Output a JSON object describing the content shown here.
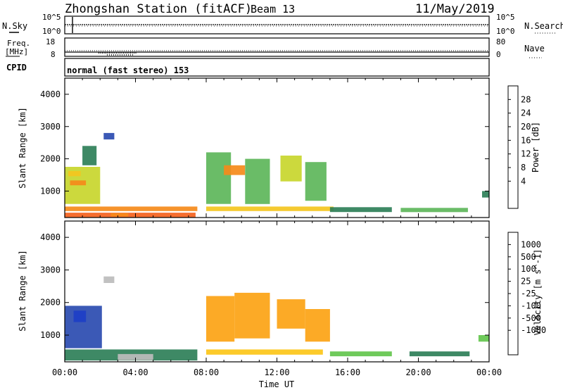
{
  "header": {
    "station": "Zhongshan Station (fitACF)",
    "beam": "Beam 13",
    "date": "11/May/2019"
  },
  "nsky_panel": {
    "left_label": "N.Sky",
    "left_ticks": [
      "10^5",
      "10^0"
    ],
    "right_ticks": [
      "10^5",
      "10^0"
    ],
    "right_label": "N.Search"
  },
  "freq_panel": {
    "left_label_1": "Freq.",
    "left_label_2": "[MHz]",
    "left_ticks": [
      "18",
      "8"
    ],
    "right_ticks": [
      "80",
      "0"
    ],
    "right_label": "Nave"
  },
  "cpid": {
    "label": "CPID",
    "value": "normal (fast stereo) 153"
  },
  "chart_data": [
    {
      "type": "heatmap",
      "title": "",
      "xlabel": "",
      "ylabel": "Slant Range [km]",
      "ylim": [
        180,
        4500
      ],
      "xlim": [
        0,
        24
      ],
      "yticks": [
        "1000",
        "2000",
        "3000",
        "4000"
      ],
      "colorbar": {
        "label": "Power [dB]",
        "ticks": [
          "28",
          "24",
          "20",
          "16",
          "12",
          "8",
          "4"
        ],
        "colors": [
          "#0000ff",
          "#2a4bb0",
          "#2e7f58",
          "#5db65a",
          "#c8d62c",
          "#f4c51e",
          "#f58a1a",
          "#f4621d",
          "#e61914"
        ]
      },
      "cells": [
        {
          "t0": 0.0,
          "t1": 7.4,
          "r0": 180,
          "r1": 330,
          "v": 28
        },
        {
          "t0": 2.6,
          "t1": 3.6,
          "r0": 210,
          "r1": 320,
          "v": 22
        },
        {
          "t0": 0.0,
          "t1": 7.5,
          "r0": 380,
          "r1": 520,
          "v": 22
        },
        {
          "t0": 0.0,
          "t1": 2.0,
          "r0": 600,
          "r1": 1750,
          "v": 14
        },
        {
          "t0": 0.3,
          "t1": 1.2,
          "r0": 1180,
          "r1": 1330,
          "v": 24
        },
        {
          "t0": 0.2,
          "t1": 0.9,
          "r0": 1460,
          "r1": 1620,
          "v": 20
        },
        {
          "t0": 2.2,
          "t1": 2.8,
          "r0": 2600,
          "r1": 2800,
          "v": 4
        },
        {
          "t0": 1.0,
          "t1": 1.8,
          "r0": 1800,
          "r1": 2400,
          "v": 8
        },
        {
          "t0": 8.0,
          "t1": 15.2,
          "r0": 380,
          "r1": 520,
          "v": 20
        },
        {
          "t0": 8.0,
          "t1": 9.4,
          "r0": 600,
          "r1": 2200,
          "v": 12
        },
        {
          "t0": 9.0,
          "t1": 10.2,
          "r0": 1500,
          "r1": 1800,
          "v": 24
        },
        {
          "t0": 10.2,
          "t1": 11.6,
          "r0": 600,
          "r1": 2000,
          "v": 12
        },
        {
          "t0": 12.2,
          "t1": 13.4,
          "r0": 1300,
          "r1": 2100,
          "v": 16
        },
        {
          "t0": 13.6,
          "t1": 14.8,
          "r0": 700,
          "r1": 1900,
          "v": 10
        },
        {
          "t0": 15.0,
          "t1": 18.5,
          "r0": 350,
          "r1": 500,
          "v": 8
        },
        {
          "t0": 19.0,
          "t1": 22.8,
          "r0": 350,
          "r1": 480,
          "v": 10
        },
        {
          "t0": 23.6,
          "t1": 24.0,
          "r0": 800,
          "r1": 1000,
          "v": 8
        }
      ]
    },
    {
      "type": "heatmap",
      "title": "",
      "xlabel": "Time UT",
      "ylabel": "Slant Range [km]",
      "ylim": [
        180,
        4500
      ],
      "xlim": [
        0,
        24
      ],
      "xticks": [
        "00:00",
        "04:00",
        "08:00",
        "12:00",
        "16:00",
        "20:00",
        "00:00"
      ],
      "yticks": [
        "1000",
        "2000",
        "3000",
        "4000"
      ],
      "colorbar": {
        "label": "Velocity [m s^-1]",
        "ticks": [
          "1000",
          "500",
          "100",
          "25",
          "-25",
          "-100",
          "-500",
          "-1000"
        ],
        "colors": [
          "#ff0000",
          "#f45a1f",
          "#f77e23",
          "#fca313",
          "#fcc518",
          "#bcbcbc",
          "#63c54d",
          "#2e7f58",
          "#2a4bb0",
          "#1d3ec7"
        ]
      },
      "cells": [
        {
          "t0": 0.0,
          "t1": 2.1,
          "r0": 600,
          "r1": 1900,
          "v": 600
        },
        {
          "t0": 0.0,
          "t1": 7.5,
          "r0": 220,
          "r1": 560,
          "v": 150
        },
        {
          "t0": 3.0,
          "t1": 5.0,
          "r0": 230,
          "r1": 420,
          "v": 0
        },
        {
          "t0": 2.2,
          "t1": 2.8,
          "r0": 2600,
          "r1": 2800,
          "v": 0
        },
        {
          "t0": 0.5,
          "t1": 1.2,
          "r0": 1400,
          "r1": 1750,
          "v": 1000
        },
        {
          "t0": 8.0,
          "t1": 14.6,
          "r0": 400,
          "r1": 560,
          "v": -150
        },
        {
          "t0": 8.0,
          "t1": 9.6,
          "r0": 800,
          "r1": 2200,
          "v": -300
        },
        {
          "t0": 9.6,
          "t1": 11.6,
          "r0": 900,
          "r1": 2300,
          "v": -400
        },
        {
          "t0": 12.0,
          "t1": 13.6,
          "r0": 1200,
          "r1": 2100,
          "v": -350
        },
        {
          "t0": 13.6,
          "t1": 15.0,
          "r0": 800,
          "r1": 1800,
          "v": -300
        },
        {
          "t0": 15.0,
          "t1": 18.5,
          "r0": 350,
          "r1": 500,
          "v": 20
        },
        {
          "t0": 19.5,
          "t1": 22.9,
          "r0": 350,
          "r1": 500,
          "v": 80
        },
        {
          "t0": 23.4,
          "t1": 24.0,
          "r0": 800,
          "r1": 1000,
          "v": 30
        }
      ]
    }
  ]
}
